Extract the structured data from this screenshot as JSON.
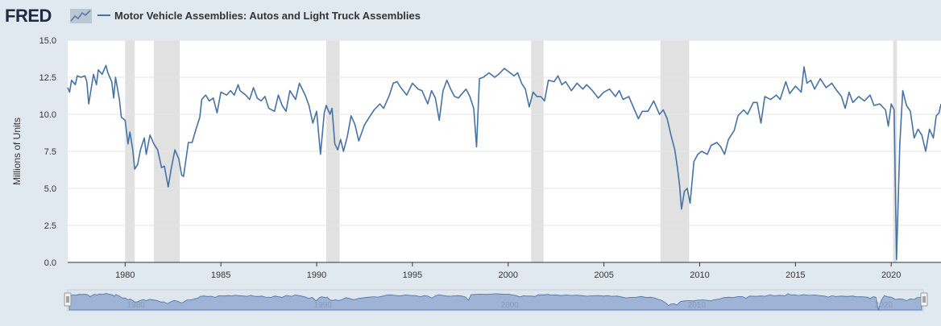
{
  "header": {
    "logo_text": "FRED",
    "legend_label": "Motor Vehicle Assemblies: Autos and Light Truck Assemblies"
  },
  "colors": {
    "background": "#e1e9f0",
    "plot_bg": "#ffffff",
    "series": "#4572a7",
    "recession": "#e1e1e1",
    "grid": "#e6e6e6",
    "navigator_fill": "#9fb3d6",
    "navigator_bg": "#dfe6ee"
  },
  "chart_data": {
    "type": "line",
    "title": "Motor Vehicle Assemblies: Autos and Light Truck Assemblies",
    "ylabel": "Millions of Units",
    "xlabel": "",
    "xlim": [
      1977.0,
      2022.6
    ],
    "ylim": [
      0,
      15
    ],
    "yticks": [
      0,
      2.5,
      5,
      7.5,
      10,
      12.5,
      15
    ],
    "ytick_labels": [
      "0.0",
      "2.5",
      "5.0",
      "7.5",
      "10.0",
      "12.5",
      "15.0"
    ],
    "xticks": [
      1980,
      1985,
      1990,
      1995,
      2000,
      2005,
      2010,
      2015,
      2020
    ],
    "xtick_labels": [
      "1980",
      "1985",
      "1990",
      "1995",
      "2000",
      "2005",
      "2010",
      "2015",
      "2020"
    ],
    "grid": true,
    "recessions": [
      [
        1980.0,
        1980.5
      ],
      [
        1981.5,
        1982.85
      ],
      [
        1990.5,
        1991.2
      ],
      [
        2001.2,
        2001.85
      ],
      [
        2007.95,
        2009.45
      ],
      [
        2020.1,
        2020.3
      ]
    ],
    "series": [
      {
        "name": "Motor Vehicle Assemblies: Autos and Light Truck Assemblies",
        "points": [
          [
            1977.0,
            11.8
          ],
          [
            1977.1,
            11.5
          ],
          [
            1977.2,
            12.3
          ],
          [
            1977.4,
            12.0
          ],
          [
            1977.5,
            12.6
          ],
          [
            1977.7,
            12.5
          ],
          [
            1977.9,
            12.6
          ],
          [
            1978.0,
            12.2
          ],
          [
            1978.1,
            10.7
          ],
          [
            1978.2,
            11.5
          ],
          [
            1978.35,
            12.7
          ],
          [
            1978.5,
            12.0
          ],
          [
            1978.6,
            13.0
          ],
          [
            1978.8,
            12.7
          ],
          [
            1979.0,
            13.3
          ],
          [
            1979.1,
            12.8
          ],
          [
            1979.3,
            12.2
          ],
          [
            1979.4,
            11.1
          ],
          [
            1979.5,
            12.5
          ],
          [
            1979.7,
            11.0
          ],
          [
            1979.8,
            9.8
          ],
          [
            1980.0,
            9.6
          ],
          [
            1980.15,
            8.0
          ],
          [
            1980.25,
            8.8
          ],
          [
            1980.4,
            7.6
          ],
          [
            1980.5,
            6.3
          ],
          [
            1980.65,
            6.6
          ],
          [
            1980.8,
            7.6
          ],
          [
            1981.0,
            8.4
          ],
          [
            1981.1,
            7.3
          ],
          [
            1981.3,
            8.6
          ],
          [
            1981.5,
            8.0
          ],
          [
            1981.7,
            7.6
          ],
          [
            1981.9,
            6.4
          ],
          [
            1982.05,
            6.5
          ],
          [
            1982.25,
            5.1
          ],
          [
            1982.4,
            6.3
          ],
          [
            1982.6,
            7.6
          ],
          [
            1982.8,
            7.0
          ],
          [
            1982.95,
            5.9
          ],
          [
            1983.05,
            5.8
          ],
          [
            1983.3,
            8.1
          ],
          [
            1983.5,
            8.1
          ],
          [
            1983.7,
            9.0
          ],
          [
            1983.9,
            9.8
          ],
          [
            1984.0,
            11.0
          ],
          [
            1984.2,
            11.3
          ],
          [
            1984.4,
            10.9
          ],
          [
            1984.6,
            11.1
          ],
          [
            1984.8,
            10.1
          ],
          [
            1985.0,
            11.5
          ],
          [
            1985.3,
            11.3
          ],
          [
            1985.5,
            11.6
          ],
          [
            1985.7,
            11.3
          ],
          [
            1985.9,
            12.0
          ],
          [
            1986.0,
            11.6
          ],
          [
            1986.3,
            11.3
          ],
          [
            1986.5,
            11.0
          ],
          [
            1986.7,
            11.8
          ],
          [
            1986.9,
            11.1
          ],
          [
            1987.1,
            10.9
          ],
          [
            1987.3,
            11.2
          ],
          [
            1987.5,
            10.4
          ],
          [
            1987.8,
            10.2
          ],
          [
            1988.0,
            11.3
          ],
          [
            1988.2,
            10.6
          ],
          [
            1988.4,
            10.2
          ],
          [
            1988.6,
            11.6
          ],
          [
            1988.9,
            11.0
          ],
          [
            1989.1,
            12.1
          ],
          [
            1989.4,
            11.3
          ],
          [
            1989.6,
            10.6
          ],
          [
            1989.8,
            9.4
          ],
          [
            1990.0,
            10.2
          ],
          [
            1990.2,
            7.3
          ],
          [
            1990.4,
            10.1
          ],
          [
            1990.5,
            10.6
          ],
          [
            1990.7,
            10.0
          ],
          [
            1990.8,
            10.4
          ],
          [
            1990.95,
            8.0
          ],
          [
            1991.1,
            7.6
          ],
          [
            1991.25,
            8.3
          ],
          [
            1991.4,
            7.5
          ],
          [
            1991.6,
            8.5
          ],
          [
            1991.8,
            9.9
          ],
          [
            1992.0,
            9.3
          ],
          [
            1992.2,
            8.2
          ],
          [
            1992.5,
            9.3
          ],
          [
            1992.8,
            9.9
          ],
          [
            1993.0,
            10.3
          ],
          [
            1993.3,
            10.7
          ],
          [
            1993.5,
            10.4
          ],
          [
            1993.8,
            11.3
          ],
          [
            1994.0,
            12.1
          ],
          [
            1994.2,
            12.2
          ],
          [
            1994.4,
            11.8
          ],
          [
            1994.7,
            11.3
          ],
          [
            1995.0,
            12.1
          ],
          [
            1995.3,
            11.7
          ],
          [
            1995.5,
            11.6
          ],
          [
            1995.8,
            10.7
          ],
          [
            1996.0,
            11.6
          ],
          [
            1996.2,
            11.1
          ],
          [
            1996.4,
            9.6
          ],
          [
            1996.6,
            11.6
          ],
          [
            1996.8,
            12.3
          ],
          [
            1997.0,
            11.7
          ],
          [
            1997.2,
            11.2
          ],
          [
            1997.4,
            11.1
          ],
          [
            1997.6,
            11.4
          ],
          [
            1997.8,
            11.7
          ],
          [
            1998.0,
            11.2
          ],
          [
            1998.2,
            10.4
          ],
          [
            1998.35,
            7.8
          ],
          [
            1998.5,
            12.4
          ],
          [
            1998.7,
            12.5
          ],
          [
            1999.0,
            12.8
          ],
          [
            1999.3,
            12.5
          ],
          [
            1999.5,
            12.7
          ],
          [
            1999.8,
            13.1
          ],
          [
            2000.0,
            12.9
          ],
          [
            2000.3,
            12.6
          ],
          [
            2000.5,
            12.8
          ],
          [
            2000.7,
            12.1
          ],
          [
            2000.9,
            11.7
          ],
          [
            2001.1,
            10.5
          ],
          [
            2001.3,
            11.5
          ],
          [
            2001.5,
            11.2
          ],
          [
            2001.7,
            11.2
          ],
          [
            2001.9,
            10.9
          ],
          [
            2002.1,
            12.3
          ],
          [
            2002.4,
            12.2
          ],
          [
            2002.6,
            12.6
          ],
          [
            2002.8,
            12.0
          ],
          [
            2003.0,
            12.2
          ],
          [
            2003.3,
            11.6
          ],
          [
            2003.6,
            12.1
          ],
          [
            2003.9,
            11.7
          ],
          [
            2004.1,
            12.0
          ],
          [
            2004.4,
            11.6
          ],
          [
            2004.7,
            11.1
          ],
          [
            2005.0,
            11.5
          ],
          [
            2005.3,
            11.7
          ],
          [
            2005.6,
            11.2
          ],
          [
            2005.8,
            11.6
          ],
          [
            2006.0,
            11.0
          ],
          [
            2006.3,
            11.2
          ],
          [
            2006.6,
            10.3
          ],
          [
            2006.8,
            9.7
          ],
          [
            2007.0,
            10.2
          ],
          [
            2007.3,
            10.2
          ],
          [
            2007.6,
            10.9
          ],
          [
            2007.9,
            10.0
          ],
          [
            2008.1,
            10.3
          ],
          [
            2008.3,
            9.7
          ],
          [
            2008.5,
            8.6
          ],
          [
            2008.7,
            7.6
          ],
          [
            2008.85,
            6.3
          ],
          [
            2008.95,
            5.2
          ],
          [
            2009.05,
            3.6
          ],
          [
            2009.2,
            4.8
          ],
          [
            2009.35,
            5.0
          ],
          [
            2009.5,
            4.0
          ],
          [
            2009.7,
            6.8
          ],
          [
            2009.9,
            7.3
          ],
          [
            2010.1,
            7.5
          ],
          [
            2010.4,
            7.3
          ],
          [
            2010.6,
            7.9
          ],
          [
            2010.9,
            8.1
          ],
          [
            2011.1,
            7.8
          ],
          [
            2011.3,
            7.3
          ],
          [
            2011.5,
            8.3
          ],
          [
            2011.8,
            8.9
          ],
          [
            2012.0,
            9.9
          ],
          [
            2012.3,
            10.3
          ],
          [
            2012.5,
            10.0
          ],
          [
            2012.8,
            10.8
          ],
          [
            2013.0,
            10.8
          ],
          [
            2013.2,
            9.4
          ],
          [
            2013.4,
            11.2
          ],
          [
            2013.7,
            11.0
          ],
          [
            2014.0,
            11.3
          ],
          [
            2014.2,
            11.0
          ],
          [
            2014.5,
            12.2
          ],
          [
            2014.7,
            11.4
          ],
          [
            2015.0,
            11.9
          ],
          [
            2015.3,
            11.5
          ],
          [
            2015.45,
            13.2
          ],
          [
            2015.6,
            12.1
          ],
          [
            2015.8,
            12.3
          ],
          [
            2016.0,
            11.7
          ],
          [
            2016.3,
            12.4
          ],
          [
            2016.6,
            11.8
          ],
          [
            2016.9,
            12.1
          ],
          [
            2017.1,
            11.7
          ],
          [
            2017.4,
            11.2
          ],
          [
            2017.6,
            10.4
          ],
          [
            2017.8,
            11.5
          ],
          [
            2018.0,
            10.8
          ],
          [
            2018.3,
            11.2
          ],
          [
            2018.6,
            10.9
          ],
          [
            2018.9,
            11.3
          ],
          [
            2019.1,
            10.6
          ],
          [
            2019.4,
            10.7
          ],
          [
            2019.7,
            10.3
          ],
          [
            2019.85,
            9.2
          ],
          [
            2020.0,
            10.7
          ],
          [
            2020.15,
            10.3
          ],
          [
            2020.28,
            0.2
          ],
          [
            2020.45,
            8.0
          ],
          [
            2020.6,
            11.6
          ],
          [
            2020.8,
            10.6
          ],
          [
            2021.0,
            10.2
          ],
          [
            2021.2,
            8.4
          ],
          [
            2021.4,
            9.0
          ],
          [
            2021.6,
            8.6
          ],
          [
            2021.8,
            7.5
          ],
          [
            2022.0,
            9.0
          ],
          [
            2022.2,
            8.4
          ],
          [
            2022.35,
            9.9
          ],
          [
            2022.5,
            10.1
          ],
          [
            2022.6,
            10.7
          ]
        ]
      }
    ]
  }
}
